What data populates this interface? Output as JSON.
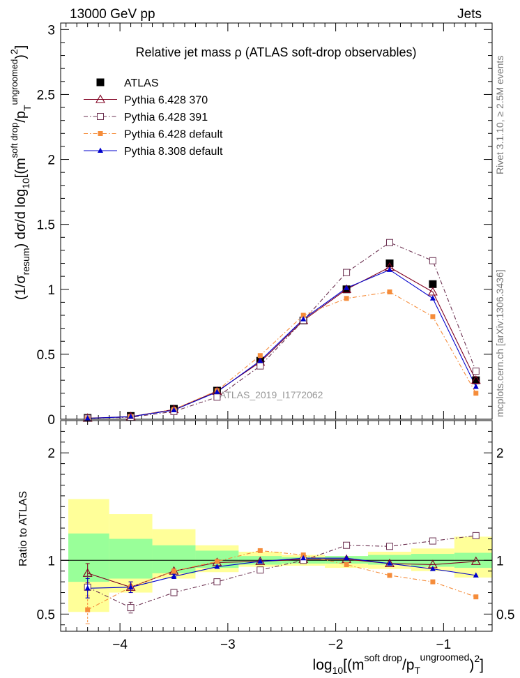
{
  "header": {
    "left": "13000 GeV pp",
    "right": "Jets"
  },
  "side_labels": {
    "top": "Rivet 3.1.10, ≥ 2.5M events",
    "bottom": "mcplots.cern.ch [arXiv:1306.3436]"
  },
  "colors": {
    "atlas": "#000000",
    "py370": "#800020",
    "py391": "#6b3050",
    "py_default": "#f58c3a",
    "py8": "#0000cc",
    "band_inner": "#99ff99",
    "band_outer": "#ffff99"
  },
  "chart_data": [
    {
      "type": "line",
      "title": "Relative jet mass  ρ (ATLAS soft-drop observables)",
      "watermark": "ATLAS_2019_I1772062",
      "ylabel_parts": [
        "(1/σ",
        "resum",
        ") dσ/d log",
        "10",
        "[(m",
        "soft drop",
        "/p",
        "T",
        "ungroomed",
        ")",
        "2",
        "]"
      ],
      "xlim": [
        -4.55,
        -0.55
      ],
      "ylim": [
        0,
        3.05
      ],
      "yticks": [
        {
          "value": 0,
          "label": "0"
        },
        {
          "value": 0.5,
          "label": "0.5"
        },
        {
          "value": 1,
          "label": "1"
        },
        {
          "value": 1.5,
          "label": "1.5"
        },
        {
          "value": 2,
          "label": "2"
        },
        {
          "value": 2.5,
          "label": "2.5"
        },
        {
          "value": 3,
          "label": "3"
        }
      ],
      "x": [
        -4.3,
        -3.9,
        -3.5,
        -3.1,
        -2.7,
        -2.3,
        -1.9,
        -1.5,
        -1.1,
        -0.7
      ],
      "series": [
        {
          "name": "ATLAS",
          "key": "atlas",
          "marker": "square-filled",
          "line": "none",
          "values": [
            0.01,
            0.025,
            0.08,
            0.22,
            0.45,
            0.76,
            1.0,
            1.2,
            1.04,
            0.3
          ]
        },
        {
          "name": "Pythia 6.428 370",
          "key": "py370",
          "marker": "triangle-open",
          "line": "solid",
          "values": [
            0.008,
            0.02,
            0.075,
            0.215,
            0.44,
            0.76,
            1.0,
            1.17,
            0.98,
            0.3
          ]
        },
        {
          "name": "Pythia 6.428 391",
          "key": "py391",
          "marker": "square-open",
          "line": "dashdot",
          "values": [
            0.008,
            0.015,
            0.06,
            0.17,
            0.41,
            0.76,
            1.13,
            1.36,
            1.22,
            0.37
          ]
        },
        {
          "name": "Pythia 6.428 default",
          "key": "py_default",
          "marker": "square-filled-small",
          "line": "dashdot",
          "values": [
            0.005,
            0.02,
            0.075,
            0.22,
            0.49,
            0.8,
            0.93,
            0.98,
            0.79,
            0.2
          ]
        },
        {
          "name": "Pythia 8.308 default",
          "key": "py8",
          "marker": "triangle-filled",
          "line": "solid",
          "values": [
            0.007,
            0.02,
            0.07,
            0.21,
            0.45,
            0.77,
            1.01,
            1.15,
            0.93,
            0.25
          ]
        }
      ],
      "legend_position": "top-left"
    },
    {
      "type": "line",
      "ylabel": "Ratio to ATLAS",
      "xlabel_parts": [
        "log",
        "10",
        "[(m",
        "soft drop",
        "/p",
        "T",
        "ungroomed",
        ")",
        "2",
        "]"
      ],
      "xlim": [
        -4.55,
        -0.55
      ],
      "ylim": [
        0.34,
        2.3
      ],
      "xticks": [
        {
          "value": -4,
          "label": "−4"
        },
        {
          "value": -3,
          "label": "−3"
        },
        {
          "value": -2,
          "label": "−2"
        },
        {
          "value": -1,
          "label": "−1"
        }
      ],
      "yticks": [
        {
          "value": 0.5,
          "label": "0.5"
        },
        {
          "value": 1,
          "label": "1"
        },
        {
          "value": 2,
          "label": "2"
        }
      ],
      "reference_line": 1,
      "bands": {
        "edges": [
          -4.55,
          -4.1,
          -3.7,
          -3.3,
          -2.9,
          -2.5,
          -2.1,
          -1.7,
          -1.3,
          -0.9,
          -0.5
        ],
        "inner": [
          [
            0.8,
            1.25
          ],
          [
            0.83,
            1.2
          ],
          [
            0.88,
            1.14
          ],
          [
            0.93,
            1.09
          ],
          [
            0.96,
            1.04
          ],
          [
            0.97,
            1.03
          ],
          [
            0.97,
            1.04
          ],
          [
            0.96,
            1.05
          ],
          [
            0.94,
            1.06
          ],
          [
            0.93,
            1.07
          ]
        ],
        "outer": [
          [
            0.52,
            1.57
          ],
          [
            0.7,
            1.43
          ],
          [
            0.83,
            1.29
          ],
          [
            0.89,
            1.14
          ],
          [
            0.94,
            1.08
          ],
          [
            0.95,
            1.05
          ],
          [
            0.93,
            1.04
          ],
          [
            0.92,
            1.08
          ],
          [
            0.9,
            1.11
          ],
          [
            0.84,
            1.22
          ]
        ]
      },
      "series": [
        {
          "name": "Pythia 6.428 370",
          "key": "py370",
          "marker": "triangle-open",
          "line": "solid",
          "values": [
            0.88,
            0.75,
            0.9,
            0.98,
            0.99,
            1.01,
            1.01,
            0.97,
            0.96,
            0.99
          ],
          "errors": [
            0.09,
            0.05,
            0.02,
            0.01,
            0.01,
            0.01,
            0.01,
            0.01,
            0.01,
            0.01
          ]
        },
        {
          "name": "Pythia 6.428 391",
          "key": "py391",
          "marker": "square-open",
          "line": "dashdot",
          "values": [
            0.75,
            0.56,
            0.7,
            0.8,
            0.91,
            1.0,
            1.14,
            1.13,
            1.18,
            1.23
          ],
          "errors": [
            0.1,
            0.05,
            0.03,
            0.02,
            0.01,
            0.01,
            0.01,
            0.01,
            0.01,
            0.01
          ]
        },
        {
          "name": "Pythia 6.428 default",
          "key": "py_default",
          "marker": "square-filled-small",
          "line": "dashdot",
          "values": [
            0.54,
            0.75,
            0.9,
            0.99,
            1.09,
            1.05,
            0.96,
            0.86,
            0.8,
            0.66
          ],
          "errors": [
            0.13,
            0.05,
            0.02,
            0.01,
            0.01,
            0.01,
            0.01,
            0.01,
            0.01,
            0.01
          ]
        },
        {
          "name": "Pythia 8.308 default",
          "key": "py8",
          "marker": "triangle-filled",
          "line": "solid",
          "values": [
            0.74,
            0.75,
            0.85,
            0.94,
            0.99,
            1.02,
            1.02,
            0.97,
            0.92,
            0.86
          ],
          "errors": [
            0.09,
            0.05,
            0.02,
            0.01,
            0.01,
            0.01,
            0.01,
            0.01,
            0.01,
            0.01
          ]
        }
      ]
    }
  ]
}
